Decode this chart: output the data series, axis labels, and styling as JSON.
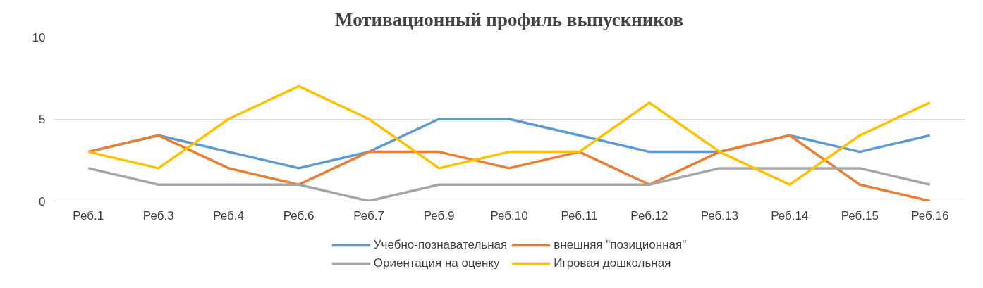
{
  "chart_data": {
    "type": "line",
    "title": "Мотивационный профиль выпускников",
    "categories": [
      "Реб.1",
      "Реб.3",
      "Реб.4",
      "Реб.6",
      "Реб.7",
      "Реб.9",
      "Реб.10",
      "Реб.11",
      "Реб.12",
      "Реб.13",
      "Реб.14",
      "Реб.15",
      "Реб.16"
    ],
    "series": [
      {
        "name": "Учебно-познавательная",
        "color": "#5b9bd5",
        "values": [
          3,
          4,
          3,
          2,
          3,
          5,
          5,
          4,
          3,
          3,
          4,
          3,
          4
        ]
      },
      {
        "name": "внешняя \"позиционная\"",
        "color": "#ed7d31",
        "values": [
          3,
          4,
          2,
          1,
          3,
          3,
          2,
          3,
          1,
          3,
          4,
          1,
          0
        ]
      },
      {
        "name": "Ориентация на оценку",
        "color": "#a5a5a5",
        "values": [
          2,
          1,
          1,
          1,
          0,
          1,
          1,
          1,
          1,
          2,
          2,
          2,
          1
        ]
      },
      {
        "name": "Игровая дошкольная",
        "color": "#ffc000",
        "values": [
          3,
          2,
          5,
          7,
          5,
          2,
          3,
          3,
          6,
          3,
          1,
          4,
          6
        ]
      }
    ],
    "ylim": [
      0,
      10
    ],
    "yticks": [
      0,
      5,
      10
    ],
    "grid": "y",
    "legend": "bottom",
    "marker": "none",
    "line_style": "solid"
  }
}
